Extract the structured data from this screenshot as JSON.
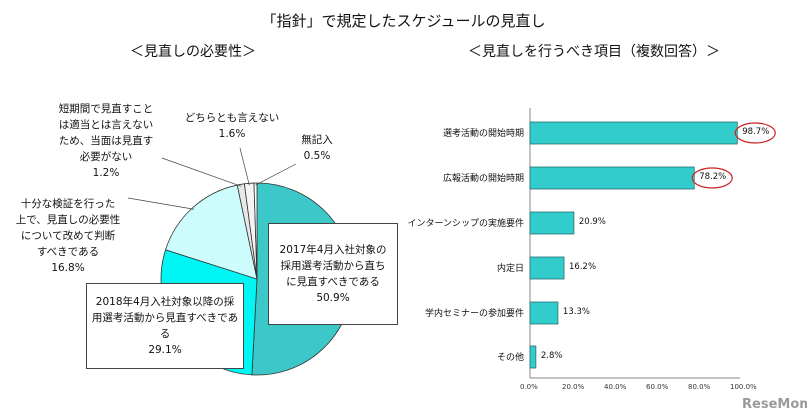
{
  "title": "「指針」で規定したスケジュールの見直し",
  "watermark": "ReseMom",
  "chart_data": [
    {
      "type": "pie",
      "title": "＜見直しの必要性＞",
      "slices": [
        {
          "label": "2017年4月入社対象の採用選考活動から直ちに見直すべきである",
          "lines": [
            "2017年4月入社対象の",
            "採用選考活動から直ち",
            "に見直すべきである"
          ],
          "value": 50.9,
          "pct": "50.9%",
          "color": "#3cc8c8"
        },
        {
          "label": "2018年4月入社対象以降の採用選考活動から見直すべきである",
          "lines": [
            "2018年4月入社対象以降",
            "の採用選考活動から見直",
            "すべきである"
          ],
          "value": 29.1,
          "pct": "29.1%",
          "color": "#00f5f5"
        },
        {
          "label": "十分な検証を行った上で、見直しの必要性について改めて判断すべきである",
          "lines": [
            "十分な検証を行った",
            "上で、見直しの必要性",
            "について改めて判断",
            "すべきである"
          ],
          "value": 16.8,
          "pct": "16.8%",
          "color": "#ccfcfc"
        },
        {
          "label": "短期間で見直すことは適当とは言えないため、当面は見直す必要がない",
          "lines": [
            "短期間で見直すこと",
            "は適当とは言えない",
            "ため、当面は見直す",
            "必要がない"
          ],
          "value": 1.2,
          "pct": "1.2%",
          "color": "#e8e8e8"
        },
        {
          "label": "どちらとも言えない",
          "lines": [
            "どちらとも言えない"
          ],
          "value": 1.6,
          "pct": "1.6%",
          "color": "#f4f4f4"
        },
        {
          "label": "無記入",
          "lines": [
            "無記入"
          ],
          "value": 0.5,
          "pct": "0.5%",
          "color": "#ffffff"
        }
      ]
    },
    {
      "type": "bar",
      "orientation": "horizontal",
      "title": "＜見直しを行うべき項目（複数回答）＞",
      "categories": [
        "選考活動の開始時期",
        "広報活動の開始時期",
        "インターンシップの実施要件",
        "内定日",
        "学内セミナーの参加要件",
        "その他"
      ],
      "values": [
        98.7,
        78.2,
        20.9,
        16.2,
        13.3,
        2.8
      ],
      "value_labels": [
        "98.7%",
        "78.2%",
        "20.9%",
        "16.2%",
        "13.3%",
        "2.8%"
      ],
      "highlighted": [
        "98.7%",
        "78.2%"
      ],
      "xlim": [
        0,
        100
      ],
      "xticks": [
        "0.0%",
        "20.0%",
        "40.0%",
        "60.0%",
        "80.0%",
        "100.0%"
      ],
      "bar_color": "#33cccc",
      "highlight_color": "#cc2222"
    }
  ]
}
